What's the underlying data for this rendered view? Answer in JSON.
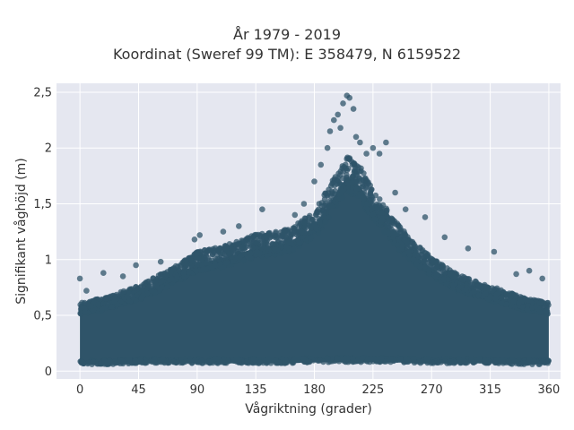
{
  "chart_data": {
    "type": "scatter",
    "title": "År 1979 - 2019",
    "subtitle": "Koordinat (Sweref 99 TM): E 358479, N 6159522",
    "xlabel": "Vågriktning (grader)",
    "ylabel": "Signifikant våghöjd (m)",
    "xlim": [
      -18,
      369
    ],
    "ylim": [
      -0.07,
      2.58
    ],
    "x_ticks": [
      0,
      45,
      90,
      135,
      180,
      225,
      270,
      315,
      360
    ],
    "x_tick_labels": [
      "0",
      "45",
      "90",
      "135",
      "180",
      "225",
      "270",
      "315",
      "360"
    ],
    "y_ticks": [
      0,
      0.5,
      1,
      1.5,
      2,
      2.5
    ],
    "y_tick_labels": [
      "0",
      "0,5",
      "1",
      "1,5",
      "2",
      "2,5"
    ],
    "grid": true,
    "legend": "none",
    "marker_color": "#2f5469",
    "background_color": "#e5e7f0",
    "envelope": {
      "x": [
        0,
        20,
        45,
        70,
        90,
        110,
        135,
        160,
        180,
        195,
        205,
        215,
        225,
        240,
        255,
        270,
        290,
        315,
        340,
        360
      ],
      "y_max": [
        0.6,
        0.65,
        0.75,
        0.9,
        1.05,
        1.1,
        1.2,
        1.25,
        1.4,
        1.7,
        1.9,
        1.8,
        1.6,
        1.35,
        1.15,
        1.0,
        0.85,
        0.75,
        0.65,
        0.6
      ],
      "y_min": [
        0.06,
        0.06,
        0.07,
        0.07,
        0.07,
        0.07,
        0.07,
        0.07,
        0.08,
        0.08,
        0.08,
        0.08,
        0.08,
        0.08,
        0.07,
        0.07,
        0.07,
        0.07,
        0.06,
        0.06
      ]
    },
    "outliers": [
      {
        "x": 0,
        "y": 0.83
      },
      {
        "x": 5,
        "y": 0.72
      },
      {
        "x": 18,
        "y": 0.88
      },
      {
        "x": 33,
        "y": 0.85
      },
      {
        "x": 43,
        "y": 0.95
      },
      {
        "x": 62,
        "y": 0.98
      },
      {
        "x": 88,
        "y": 1.18
      },
      {
        "x": 92,
        "y": 1.22
      },
      {
        "x": 110,
        "y": 1.25
      },
      {
        "x": 122,
        "y": 1.3
      },
      {
        "x": 140,
        "y": 1.45
      },
      {
        "x": 165,
        "y": 1.4
      },
      {
        "x": 172,
        "y": 1.5
      },
      {
        "x": 180,
        "y": 1.7
      },
      {
        "x": 185,
        "y": 1.85
      },
      {
        "x": 190,
        "y": 2.0
      },
      {
        "x": 192,
        "y": 2.15
      },
      {
        "x": 195,
        "y": 2.25
      },
      {
        "x": 198,
        "y": 2.3
      },
      {
        "x": 200,
        "y": 2.18
      },
      {
        "x": 202,
        "y": 2.4
      },
      {
        "x": 205,
        "y": 2.47
      },
      {
        "x": 207,
        "y": 2.45
      },
      {
        "x": 210,
        "y": 2.35
      },
      {
        "x": 212,
        "y": 2.1
      },
      {
        "x": 215,
        "y": 2.05
      },
      {
        "x": 220,
        "y": 1.95
      },
      {
        "x": 225,
        "y": 2.0
      },
      {
        "x": 230,
        "y": 1.95
      },
      {
        "x": 235,
        "y": 2.05
      },
      {
        "x": 242,
        "y": 1.6
      },
      {
        "x": 250,
        "y": 1.45
      },
      {
        "x": 265,
        "y": 1.38
      },
      {
        "x": 280,
        "y": 1.2
      },
      {
        "x": 298,
        "y": 1.1
      },
      {
        "x": 318,
        "y": 1.07
      },
      {
        "x": 335,
        "y": 0.87
      },
      {
        "x": 345,
        "y": 0.9
      },
      {
        "x": 355,
        "y": 0.83
      }
    ]
  }
}
